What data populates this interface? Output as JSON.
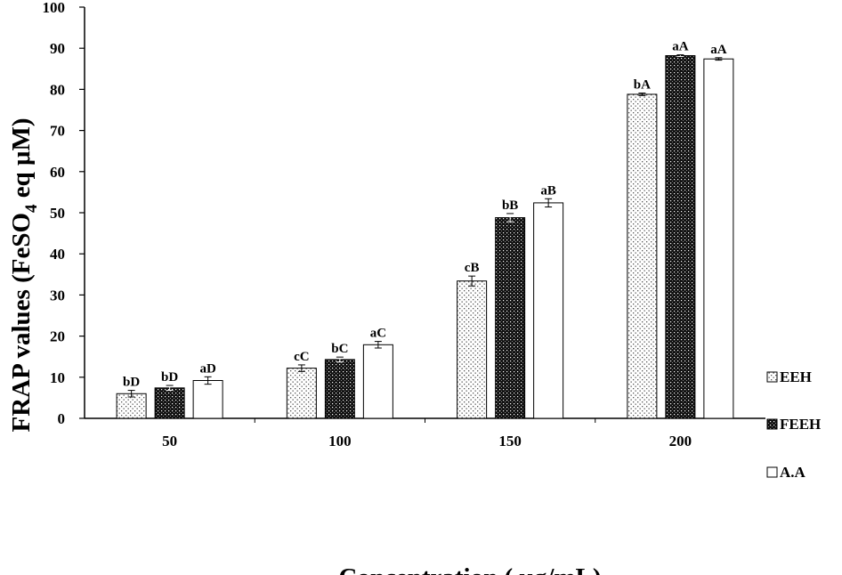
{
  "chart_data": {
    "type": "bar",
    "categories": [
      "50",
      "100",
      "150",
      "200"
    ],
    "series": [
      {
        "name": "EEH",
        "pattern": "dots",
        "values": [
          6,
          12.2,
          33.4,
          78.8
        ],
        "errors": [
          0.8,
          0.8,
          1.2,
          0.3
        ],
        "letters": [
          "bD",
          "cC",
          "cB",
          "bA"
        ]
      },
      {
        "name": "FEEH",
        "pattern": "dense",
        "values": [
          7.4,
          14.3,
          48.8,
          88.2
        ],
        "errors": [
          0.6,
          0.6,
          1.0,
          0.2
        ],
        "letters": [
          "bD",
          "bC",
          "bB",
          "aA"
        ]
      },
      {
        "name": "A.A",
        "pattern": "blank",
        "values": [
          9.2,
          17.9,
          52.4,
          87.4
        ],
        "errors": [
          0.9,
          0.8,
          1.0,
          0.3
        ],
        "letters": [
          "aD",
          "aC",
          "aB",
          "aA"
        ]
      }
    ],
    "xlabel": "Concentration ( μg/mL)",
    "ylabel_main": "FRAP values (FeSO",
    "ylabel_sub": "4",
    "ylabel_tail": " eq μM)",
    "ylim": [
      0,
      100
    ],
    "yticks": [
      "0",
      "10",
      "20",
      "30",
      "40",
      "50",
      "60",
      "70",
      "80",
      "90",
      "100"
    ],
    "legend_position": "right",
    "grid": false,
    "colors": {
      "axis": "#000000",
      "bar_fill": "#ffffff",
      "dense_fill": "#111111"
    }
  }
}
